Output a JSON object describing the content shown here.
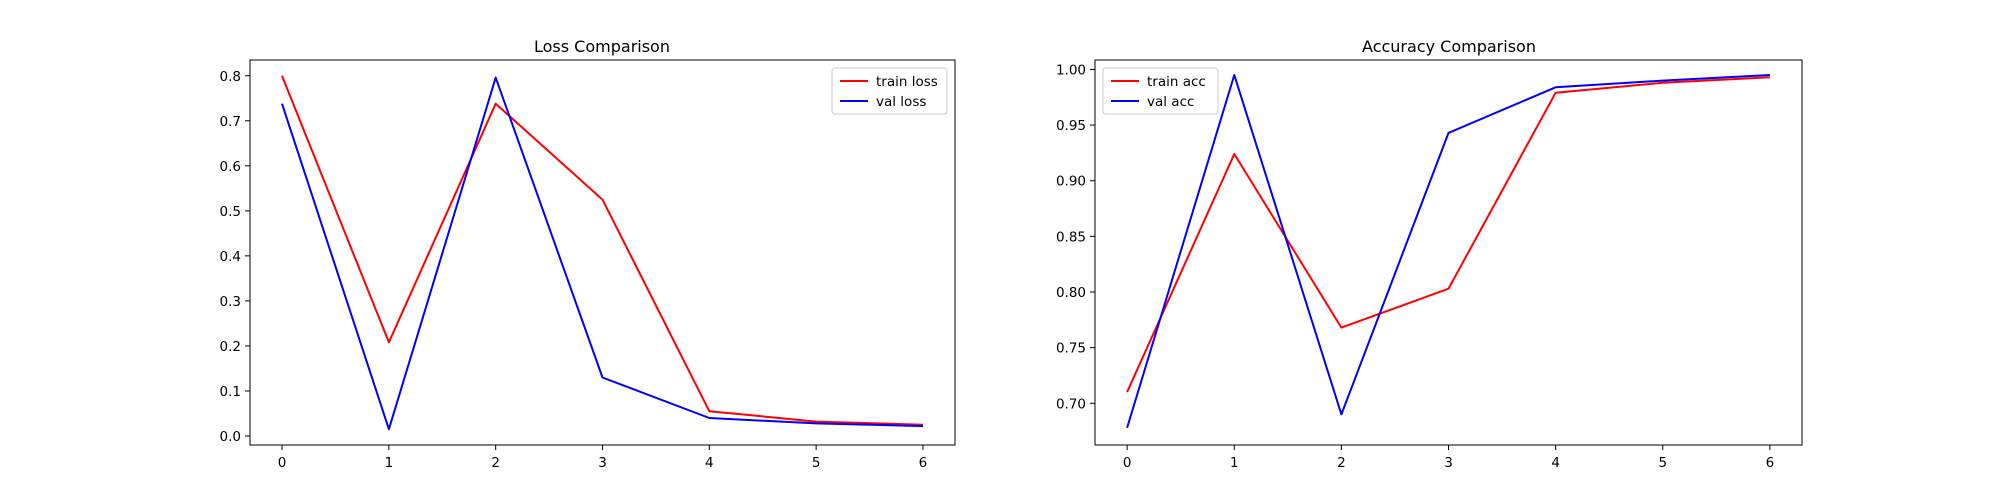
{
  "chart_data": [
    {
      "type": "line",
      "title": "Loss Comparison",
      "xlabel": "",
      "ylabel": "",
      "x": [
        0,
        1,
        2,
        3,
        4,
        5,
        6
      ],
      "xlim": [
        -0.3,
        6.3
      ],
      "ylim": [
        -0.02,
        0.835
      ],
      "xticks": [
        0,
        1,
        2,
        3,
        4,
        5,
        6
      ],
      "yticks": [
        0.0,
        0.1,
        0.2,
        0.3,
        0.4,
        0.5,
        0.6,
        0.7,
        0.8
      ],
      "ytick_labels": [
        "0.0",
        "0.1",
        "0.2",
        "0.3",
        "0.4",
        "0.5",
        "0.6",
        "0.7",
        "0.8"
      ],
      "grid": false,
      "legend": "upper right",
      "series": [
        {
          "name": "train loss",
          "color": "#ff0000",
          "values": [
            0.8,
            0.208,
            0.738,
            0.525,
            0.055,
            0.032,
            0.025
          ]
        },
        {
          "name": "val loss",
          "color": "#0000ff",
          "values": [
            0.738,
            0.015,
            0.796,
            0.13,
            0.04,
            0.028,
            0.022
          ]
        }
      ]
    },
    {
      "type": "line",
      "title": "Accuracy Comparison",
      "xlabel": "",
      "ylabel": "",
      "x": [
        0,
        1,
        2,
        3,
        4,
        5,
        6
      ],
      "xlim": [
        -0.3,
        6.3
      ],
      "ylim": [
        0.6625,
        1.0085
      ],
      "xticks": [
        0,
        1,
        2,
        3,
        4,
        5,
        6
      ],
      "yticks": [
        0.7,
        0.75,
        0.8,
        0.85,
        0.9,
        0.95,
        1.0
      ],
      "ytick_labels": [
        "0.70",
        "0.75",
        "0.80",
        "0.85",
        "0.90",
        "0.95",
        "1.00"
      ],
      "grid": false,
      "legend": "upper left",
      "series": [
        {
          "name": "train acc",
          "color": "#ff0000",
          "values": [
            0.71,
            0.924,
            0.768,
            0.803,
            0.979,
            0.988,
            0.993
          ]
        },
        {
          "name": "val acc",
          "color": "#0000ff",
          "values": [
            0.678,
            0.995,
            0.69,
            0.943,
            0.984,
            0.99,
            0.995
          ]
        }
      ]
    }
  ]
}
